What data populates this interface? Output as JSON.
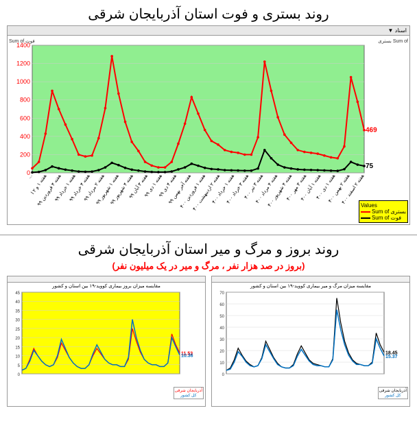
{
  "top_chart": {
    "title": "روند بستری و فوت استان آذربایجان شرقی",
    "type": "line",
    "toolbar_text": "اسناد ▼",
    "corner_labels": {
      "tl": "Sum of فوت",
      "tr": "بستری Sum of"
    },
    "background_color": "#90ee90",
    "plot_bg": "#90ee90",
    "grid_color": "#cccccc",
    "ylim": [
      0,
      1400
    ],
    "ytick_step": 200,
    "ylabels": [
      "0",
      "200",
      "400",
      "600",
      "800",
      "1000",
      "1200",
      "1400"
    ],
    "ylabel_color": "#ff0000",
    "xlabels": [
      "...",
      "هفته ۱ و ۲ ا",
      "هفته ۴ فروردین ۹۹",
      "هفته ۱ خرداد ۹۹",
      "هفته ۴ خرداد ۹۹",
      "هفته ۲ مرداد ۹۹",
      "هفته ۱ شهریور ۹۹",
      "هفته ۴ شهریور ۹۹",
      "هفته ۳ آبان ۹۹",
      "هفته ۱ دی ۹۹",
      "هفته ۴ دی ۹۹",
      "هفته آخر بهمن ۹۹",
      "هفته ۱ فروردین ۴۰۰",
      "هفته ۲ اردیبهشت ۴۰۰",
      "هفته ۱ خرداد ۴۰۰",
      "هفته ۳ خرداد ۴۰۰",
      "هفته ۳ تیر ۴۰۰",
      "هفته ۴ مرداد ۴۰۰",
      "هفته ۴ شهریور ۴۰۰",
      "هفته ۳ مهر ۴۰۰",
      "هفته ۱ آبان ۴۰۰",
      "هفته ۱ دی ۴۰۰",
      "هفته ۲ بهمن ۴۰۰",
      "هفته ۲ اسفند ۴۰۰"
    ],
    "series": [
      {
        "name": "بستری",
        "legend_label": "Sum of بستری",
        "color": "#ff0000",
        "line_width": 2,
        "marker": "circle",
        "end_label": "469",
        "values": [
          50,
          120,
          430,
          900,
          700,
          530,
          370,
          200,
          180,
          190,
          380,
          710,
          1280,
          870,
          560,
          340,
          240,
          120,
          80,
          60,
          60,
          120,
          320,
          540,
          830,
          650,
          470,
          350,
          310,
          250,
          230,
          220,
          200,
          200,
          390,
          1220,
          900,
          610,
          420,
          330,
          250,
          230,
          220,
          210,
          190,
          170,
          160,
          290,
          1050,
          780,
          469
        ]
      },
      {
        "name": "فوت",
        "legend_label": "Sum of فوت",
        "color": "#000000",
        "line_width": 2,
        "marker": "circle",
        "end_label": "75",
        "values": [
          5,
          10,
          30,
          70,
          50,
          35,
          25,
          15,
          12,
          14,
          30,
          60,
          110,
          85,
          55,
          35,
          25,
          15,
          10,
          8,
          8,
          15,
          38,
          60,
          100,
          78,
          55,
          42,
          38,
          30,
          28,
          26,
          24,
          24,
          48,
          250,
          160,
          90,
          60,
          48,
          38,
          34,
          32,
          30,
          27,
          24,
          22,
          40,
          120,
          90,
          75
        ]
      }
    ],
    "legend_title": "Values"
  },
  "bottom_section": {
    "title": "روند بروز و مرگ و میر استان آذربایجان شرقی",
    "subtitle": "(بروز در صد هزار نفر ، مرگ و میر در یک میلیون نفر)",
    "subtitle_color": "#ff0000",
    "left_chart": {
      "type": "line",
      "title": "مقایسه میزان بروز بیماری کووید-۱۹ بین استان و کشور",
      "background_color": "#ffff00",
      "grid_color": "#d0d0d0",
      "ylim": [
        0,
        45
      ],
      "ytick_step": 5,
      "ylabels": [
        "0",
        "5",
        "10",
        "15",
        "20",
        "25",
        "30",
        "35",
        "40",
        "45"
      ],
      "series": [
        {
          "name": "آذربایجان شرقی",
          "color": "#ff0000",
          "line_width": 1.2,
          "end_label": "11.53",
          "values": [
            2,
            3,
            8,
            14,
            10,
            7,
            5,
            4,
            5,
            9,
            17,
            13,
            9,
            6,
            4,
            3,
            3,
            5,
            10,
            14,
            11,
            8,
            6,
            5,
            5,
            4,
            4,
            8,
            25,
            18,
            12,
            8,
            6,
            5,
            5,
            4,
            4,
            6,
            22,
            16,
            11.53
          ]
        },
        {
          "name": "کل کشور",
          "color": "#0070c0",
          "line_width": 1.5,
          "end_label": "10.36",
          "values": [
            2,
            3,
            7,
            13,
            10,
            7,
            5,
            4,
            5,
            10,
            19,
            14,
            9,
            6,
            4,
            3,
            3,
            5,
            11,
            16,
            12,
            8,
            6,
            5,
            5,
            4,
            4,
            9,
            30,
            20,
            13,
            8,
            6,
            5,
            5,
            4,
            4,
            6,
            20,
            15,
            10.36
          ]
        }
      ],
      "legend_items": [
        "آذربایجان شرقی",
        "کل کشور"
      ]
    },
    "right_chart": {
      "type": "line",
      "title": "مقایسه میزان مرگ و میر بیماری کووید-۱۹ بین استان و کشور",
      "background_color": "#ffffff",
      "grid_color": "#d8d8d8",
      "ylim": [
        0,
        70
      ],
      "ytick_step": 10,
      "ylabels": [
        "0",
        "10",
        "20",
        "30",
        "40",
        "50",
        "60",
        "70"
      ],
      "series": [
        {
          "name": "آذربایجان شرقی",
          "color": "#000000",
          "line_width": 1.2,
          "end_label": "18.45",
          "values": [
            3,
            5,
            12,
            22,
            16,
            11,
            8,
            6,
            7,
            14,
            28,
            21,
            14,
            9,
            6,
            5,
            5,
            8,
            17,
            24,
            18,
            12,
            9,
            8,
            7,
            6,
            6,
            13,
            65,
            44,
            28,
            18,
            12,
            9,
            8,
            7,
            7,
            10,
            35,
            25,
            18.45
          ]
        },
        {
          "name": "کل کشور",
          "color": "#0070c0",
          "line_width": 1.5,
          "end_label": "15.37",
          "values": [
            3,
            4,
            10,
            19,
            15,
            10,
            7,
            6,
            7,
            13,
            25,
            19,
            13,
            8,
            6,
            5,
            5,
            7,
            15,
            21,
            16,
            11,
            8,
            7,
            7,
            6,
            6,
            12,
            55,
            38,
            25,
            16,
            11,
            8,
            8,
            7,
            7,
            9,
            30,
            22,
            15.37
          ]
        }
      ],
      "legend_items": [
        "آذربایجان شرقی",
        "کل کشور"
      ]
    }
  }
}
